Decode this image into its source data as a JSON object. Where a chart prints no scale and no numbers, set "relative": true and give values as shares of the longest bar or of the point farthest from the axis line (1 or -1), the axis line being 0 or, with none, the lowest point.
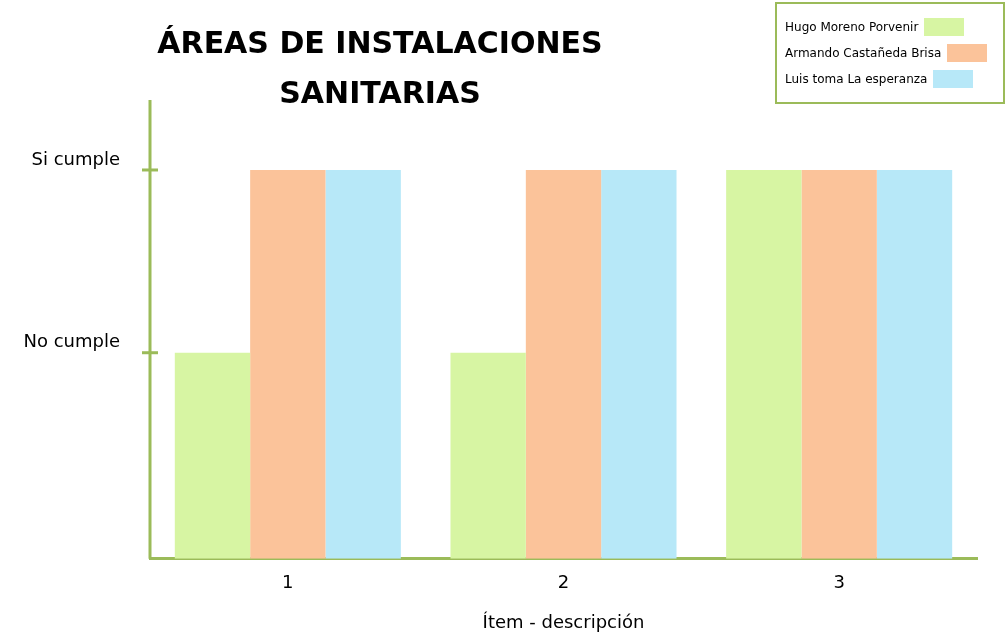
{
  "chart_data": {
    "type": "bar",
    "title": "ÁREAS DE INSTALACIONES SANITARIAS",
    "xlabel": "Ítem - descripción",
    "categories": [
      "1",
      "2",
      "3"
    ],
    "series": [
      {
        "name": "Hugo Moreno Porvenir",
        "color": "#d7f5a3",
        "values": [
          0.53,
          0.53,
          1
        ]
      },
      {
        "name": "Armando Castañeda Brisa",
        "color": "#fbc39a",
        "values": [
          1,
          1,
          1
        ]
      },
      {
        "name": "Luis toma La esperanza",
        "color": "#b7e8f8",
        "values": [
          1,
          1,
          1
        ]
      }
    ],
    "relative": true,
    "annotations": [
      "No cumple",
      "Si cumple"
    ],
    "grid": false,
    "legend": "top right"
  }
}
